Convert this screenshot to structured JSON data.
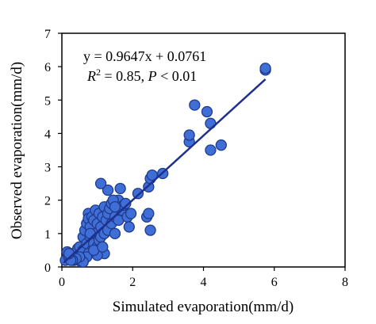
{
  "chart_data": {
    "type": "scatter",
    "title": "",
    "xlabel": "Simulated evaporation(mm/d)",
    "ylabel": "Observed evaporation(mm/d)",
    "xlim": [
      0,
      8
    ],
    "ylim": [
      0,
      7
    ],
    "xticks": [
      "0",
      "2",
      "4",
      "6",
      "8"
    ],
    "yticks": [
      "0",
      "1",
      "2",
      "3",
      "4",
      "5",
      "6",
      "7"
    ],
    "grid": false,
    "legend": "none",
    "marker_fill": "#3f6fd6",
    "marker_stroke": "#1f3a8c",
    "line_color": "#1f2f8c",
    "axis_color": "#000000",
    "annotations": {
      "equation": "y = 0.9647x + 0.0761",
      "r2_prefix": "R",
      "r2_sup": "2",
      "r2_mid": " = 0.85, ",
      "p_label": "P",
      "p_suffix": " < 0.01"
    },
    "fit": {
      "slope": 0.9647,
      "intercept": 0.0761,
      "x_range": [
        0.05,
        5.75
      ]
    },
    "points": [
      [
        0.1,
        0.2
      ],
      [
        0.15,
        0.45
      ],
      [
        0.2,
        0.3
      ],
      [
        0.3,
        0.4
      ],
      [
        0.35,
        0.2
      ],
      [
        0.4,
        0.35
      ],
      [
        0.45,
        0.55
      ],
      [
        0.5,
        0.6
      ],
      [
        0.55,
        0.25
      ],
      [
        0.55,
        0.15
      ],
      [
        0.6,
        0.5
      ],
      [
        0.6,
        0.9
      ],
      [
        0.65,
        1.1
      ],
      [
        0.65,
        0.3
      ],
      [
        0.7,
        0.7
      ],
      [
        0.7,
        1.3
      ],
      [
        0.75,
        1.6
      ],
      [
        0.75,
        1.45
      ],
      [
        0.8,
        0.9
      ],
      [
        0.8,
        1.2
      ],
      [
        0.85,
        1.5
      ],
      [
        0.85,
        0.5
      ],
      [
        0.9,
        0.7
      ],
      [
        0.9,
        1.4
      ],
      [
        0.95,
        1.7
      ],
      [
        0.95,
        1.0
      ],
      [
        1.0,
        1.3
      ],
      [
        1.0,
        0.6
      ],
      [
        1.05,
        0.8
      ],
      [
        1.05,
        1.6
      ],
      [
        1.1,
        1.2
      ],
      [
        1.1,
        0.9
      ],
      [
        1.15,
        1.5
      ],
      [
        1.2,
        1.8
      ],
      [
        1.2,
        1.0
      ],
      [
        1.25,
        1.4
      ],
      [
        1.3,
        1.6
      ],
      [
        1.3,
        1.1
      ],
      [
        1.35,
        1.75
      ],
      [
        1.4,
        1.9
      ],
      [
        1.4,
        1.3
      ],
      [
        1.5,
        1.5
      ],
      [
        1.5,
        1.0
      ],
      [
        1.55,
        1.8
      ],
      [
        1.6,
        2.0
      ],
      [
        1.6,
        1.4
      ],
      [
        1.7,
        1.7
      ],
      [
        1.75,
        1.85
      ],
      [
        1.8,
        1.9
      ],
      [
        1.85,
        1.5
      ],
      [
        1.3,
        2.3
      ],
      [
        1.45,
        2.0
      ],
      [
        1.5,
        1.8
      ],
      [
        1.65,
        2.35
      ],
      [
        1.9,
        1.2
      ],
      [
        1.1,
        2.5
      ],
      [
        1.95,
        1.6
      ],
      [
        1.2,
        0.4
      ],
      [
        1.0,
        0.35
      ],
      [
        0.8,
        1.0
      ],
      [
        0.75,
        0.4
      ],
      [
        0.7,
        0.3
      ],
      [
        0.6,
        0.15
      ],
      [
        0.5,
        0.3
      ],
      [
        0.4,
        0.25
      ],
      [
        0.3,
        0.2
      ],
      [
        0.25,
        0.2
      ],
      [
        0.2,
        0.4
      ],
      [
        0.9,
        0.5
      ],
      [
        1.15,
        0.6
      ],
      [
        2.15,
        2.2
      ],
      [
        2.4,
        1.5
      ],
      [
        2.45,
        1.6
      ],
      [
        2.45,
        2.4
      ],
      [
        2.5,
        2.65
      ],
      [
        2.55,
        2.75
      ],
      [
        2.5,
        1.1
      ],
      [
        2.85,
        2.8
      ],
      [
        3.6,
        3.75
      ],
      [
        3.6,
        3.95
      ],
      [
        3.75,
        4.85
      ],
      [
        4.1,
        4.65
      ],
      [
        4.2,
        4.3
      ],
      [
        4.2,
        3.5
      ],
      [
        4.5,
        3.65
      ],
      [
        5.75,
        5.9
      ],
      [
        5.75,
        5.95
      ]
    ]
  }
}
